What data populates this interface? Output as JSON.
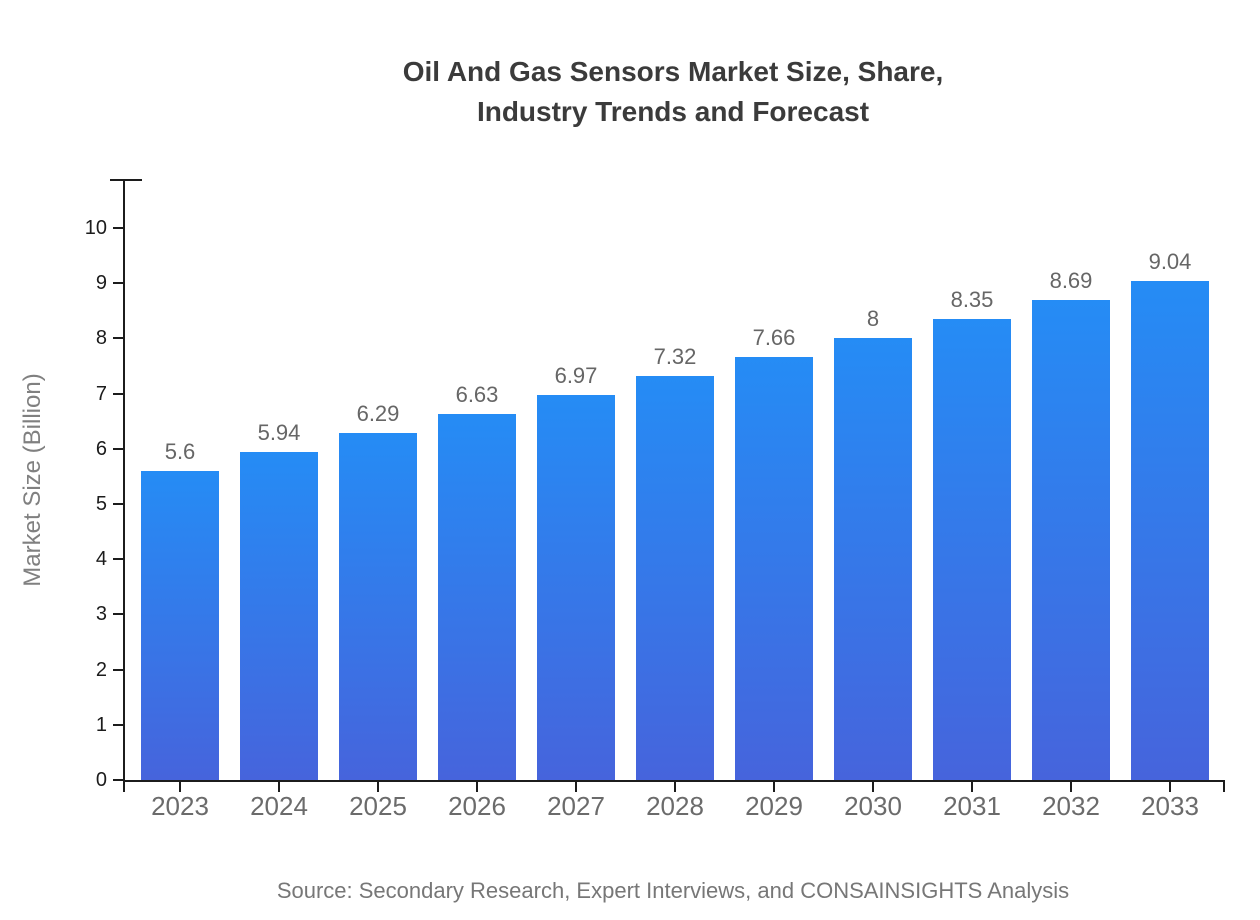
{
  "title": {
    "line1": "Oil And Gas Sensors Market Size, Share,",
    "line2": "Industry Trends and Forecast"
  },
  "source": "Source: Secondary Research, Expert Interviews, and CONSAINSIGHTS Analysis",
  "chart_data": {
    "type": "bar",
    "title": "Oil And Gas Sensors Market Size, Share, Industry Trends and Forecast",
    "categories": [
      "2023",
      "2024",
      "2025",
      "2026",
      "2027",
      "2028",
      "2029",
      "2030",
      "2031",
      "2032",
      "2033"
    ],
    "values": [
      5.6,
      5.94,
      6.29,
      6.63,
      6.97,
      7.32,
      7.66,
      8,
      8.35,
      8.69,
      9.04
    ],
    "value_labels": [
      "5.6",
      "5.94",
      "6.29",
      "6.63",
      "6.97",
      "7.32",
      "7.66",
      "8",
      "8.35",
      "8.69",
      "9.04"
    ],
    "xlabel": "",
    "ylabel": "Market Size (Billion)",
    "ylim": [
      0,
      10
    ],
    "yticks": [
      0,
      1,
      2,
      3,
      4,
      5,
      6,
      7,
      8,
      9,
      10
    ],
    "grid": false,
    "legend": "none",
    "bar_gradient_top": "#258cf5",
    "bar_gradient_bottom": "#4664dc",
    "axis_color": "#1c1c1c",
    "value_label_color": "#666666",
    "x_tick_label_color": "#6b6b6b",
    "y_tick_label_color": "#1c1c1c"
  }
}
